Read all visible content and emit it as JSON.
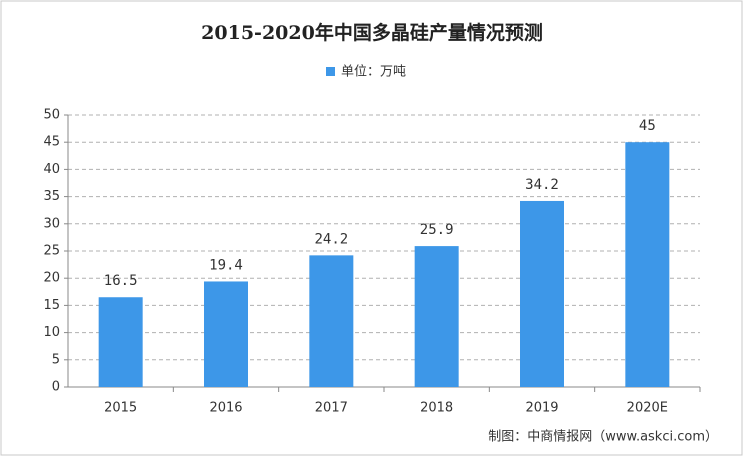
{
  "chart_data": {
    "type": "bar",
    "title": "2015-2020年中国多晶硅产量情况预测",
    "categories": [
      "2015",
      "2016",
      "2017",
      "2018",
      "2019",
      "2020E"
    ],
    "series": [
      {
        "name": "单位：万吨",
        "color": "#3d97e8",
        "values": [
          16.5,
          19.4,
          24.2,
          25.9,
          34.2,
          45
        ]
      }
    ],
    "ylim": [
      0,
      50
    ],
    "yticks": [
      0,
      5,
      10,
      15,
      20,
      25,
      30,
      35,
      40,
      45,
      50
    ],
    "grid": true,
    "legend": "top",
    "source": "制图：中商情报网（www.askci.com）"
  }
}
